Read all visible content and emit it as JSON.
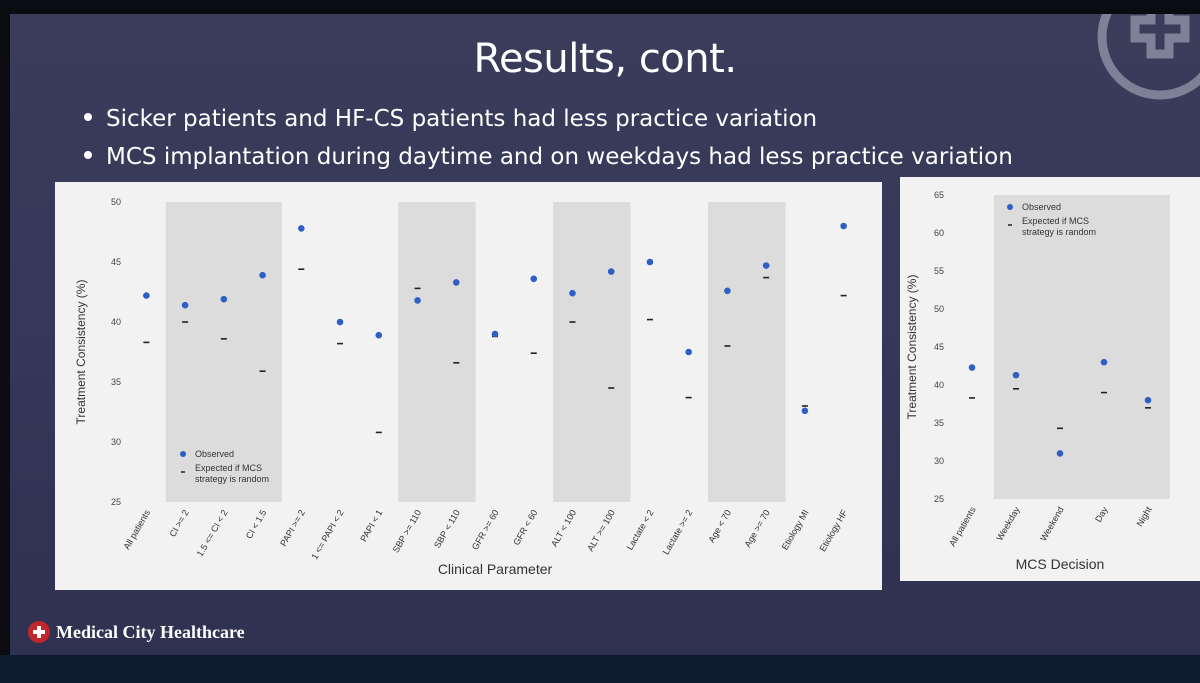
{
  "slide": {
    "title": "Results, cont.",
    "bullets": [
      "Sicker patients and HF-CS patients had less practice variation",
      "MCS implantation during daytime and on weekdays had less practice variation"
    ],
    "footer_org": "Medical City Healthcare"
  },
  "colors": {
    "observed": "#2f5fc4",
    "expected": "#222222",
    "shade": "#dcdcdc",
    "panel": "#f2f2f2"
  },
  "chart_data": [
    {
      "type": "scatter",
      "ylabel": "Treatment Consistency (%)",
      "xlabel": "Clinical Parameter",
      "ylim": [
        25,
        50
      ],
      "yticks": [
        25,
        30,
        35,
        40,
        45,
        50
      ],
      "categories": [
        "All patients",
        "CI >= 2",
        "1.5 <= CI < 2",
        "CI < 1.5",
        "PAPI >= 2",
        "1 <= PAPI < 2",
        "PAPI < 1",
        "SBP >= 110",
        "SBP < 110",
        "GFR >= 60",
        "GFR < 60",
        "ALT < 100",
        "ALT >= 100",
        "Lactate < 2",
        "Lactate >= 2",
        "Age < 70",
        "Age >= 70",
        "Etiology MI",
        "Etiology HF"
      ],
      "shaded_groups": [
        [
          1,
          3
        ],
        [
          7,
          8
        ],
        [
          11,
          12
        ],
        [
          15,
          16
        ]
      ],
      "series": [
        {
          "name": "Observed",
          "marker": "dot",
          "values": [
            42.2,
            41.4,
            41.9,
            43.9,
            47.8,
            40.0,
            38.9,
            41.8,
            43.3,
            39.0,
            43.6,
            42.4,
            44.2,
            45.0,
            37.5,
            42.6,
            44.7,
            32.6,
            48.0
          ]
        },
        {
          "name": "Expected if MCS strategy is random",
          "marker": "dash",
          "values": [
            38.3,
            40.0,
            38.6,
            35.9,
            44.4,
            38.2,
            30.8,
            42.8,
            36.6,
            38.8,
            37.4,
            40.0,
            34.5,
            40.2,
            33.7,
            38.0,
            43.7,
            33.0,
            42.2
          ]
        }
      ],
      "legend": {
        "position": "bottom-left",
        "entries": [
          "Observed",
          "Expected if MCS",
          "strategy is random"
        ]
      }
    },
    {
      "type": "scatter",
      "ylabel": "Treatment Consistency (%)",
      "xlabel": "MCS Decision",
      "ylim": [
        25,
        65
      ],
      "yticks": [
        25,
        30,
        35,
        40,
        45,
        50,
        55,
        60,
        65
      ],
      "categories": [
        "All patients",
        "Weekday",
        "Weekend",
        "Day",
        "Night"
      ],
      "shaded_groups": [
        [
          1,
          4
        ]
      ],
      "series": [
        {
          "name": "Observed",
          "marker": "dot",
          "values": [
            42.3,
            41.3,
            31.0,
            43.0,
            38.0
          ]
        },
        {
          "name": "Expected if MCS strategy is random",
          "marker": "dash",
          "values": [
            38.3,
            39.5,
            34.3,
            39.0,
            37.0
          ]
        }
      ],
      "legend": {
        "position": "top-left",
        "entries": [
          "Observed",
          "Expected if MCS",
          "strategy is random"
        ]
      }
    }
  ]
}
